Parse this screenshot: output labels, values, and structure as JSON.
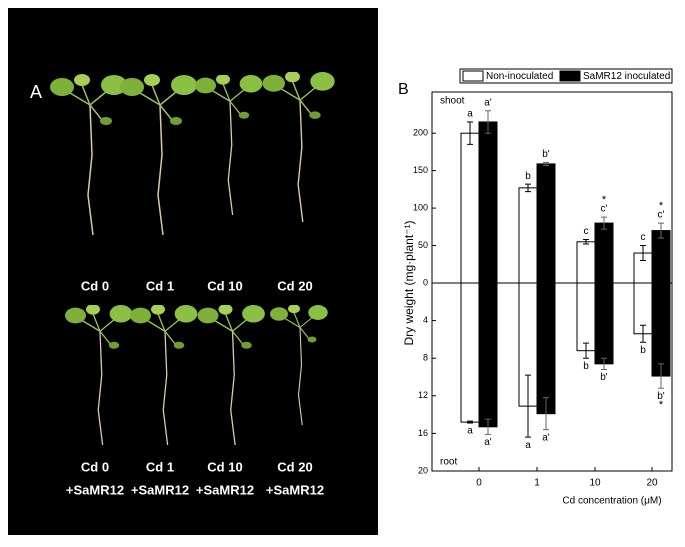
{
  "panel_a": {
    "label": "A",
    "top_labels": [
      "Cd 0",
      "Cd 1",
      "Cd 10",
      "Cd 20"
    ],
    "bottom_labels": [
      [
        "Cd 0",
        "+SaMR12"
      ],
      [
        "Cd 1",
        "+SaMR12"
      ],
      [
        "Cd 10",
        "+SaMR12"
      ],
      [
        "Cd 20",
        "+SaMR12"
      ]
    ]
  },
  "chart_data": [
    {
      "type": "bar",
      "panel_label": "B",
      "region_label": "shoot",
      "ylabel": "Dry  weight  (mg·plant⁻¹)",
      "xlabel": "Cd concentration (μM)",
      "categories": [
        "0",
        "1",
        "10",
        "20"
      ],
      "ylim": [
        0,
        255
      ],
      "yticks": [
        0,
        50,
        100,
        150,
        200
      ],
      "series": [
        {
          "name": "Non-inoculated",
          "color": "#ffffff",
          "values": [
            200,
            127,
            55,
            40
          ],
          "errors": [
            15,
            5,
            3,
            10
          ],
          "letters": [
            "a",
            "b",
            "c",
            "c"
          ],
          "stars": [
            null,
            null,
            null,
            null
          ]
        },
        {
          "name": "SaMR12 inoculated",
          "color": "#000000",
          "values": [
            215,
            159,
            80,
            70
          ],
          "errors": [
            15,
            2,
            8,
            10
          ],
          "letters": [
            "a'",
            "b'",
            "c'",
            "c'"
          ],
          "stars": [
            null,
            null,
            "*",
            "*"
          ]
        }
      ]
    },
    {
      "type": "bar",
      "region_label": "root",
      "direction": "down",
      "ylim": [
        0,
        20
      ],
      "yticks": [
        4,
        8,
        12,
        16,
        20
      ],
      "series": [
        {
          "color": "#ffffff",
          "values": [
            14.8,
            13.1,
            7.2,
            5.4
          ],
          "errors": [
            0.1,
            3.3,
            0.8,
            0.9
          ],
          "letters": [
            "a",
            "a",
            "b",
            "b"
          ],
          "stars": [
            null,
            null,
            null,
            null
          ]
        },
        {
          "color": "#000000",
          "values": [
            15.3,
            13.9,
            8.6,
            9.9
          ],
          "errors": [
            0.8,
            1.7,
            0.6,
            1.3
          ],
          "letters": [
            "a'",
            "a'",
            "b'",
            "b'"
          ],
          "stars": [
            null,
            null,
            null,
            "*"
          ]
        }
      ]
    }
  ]
}
